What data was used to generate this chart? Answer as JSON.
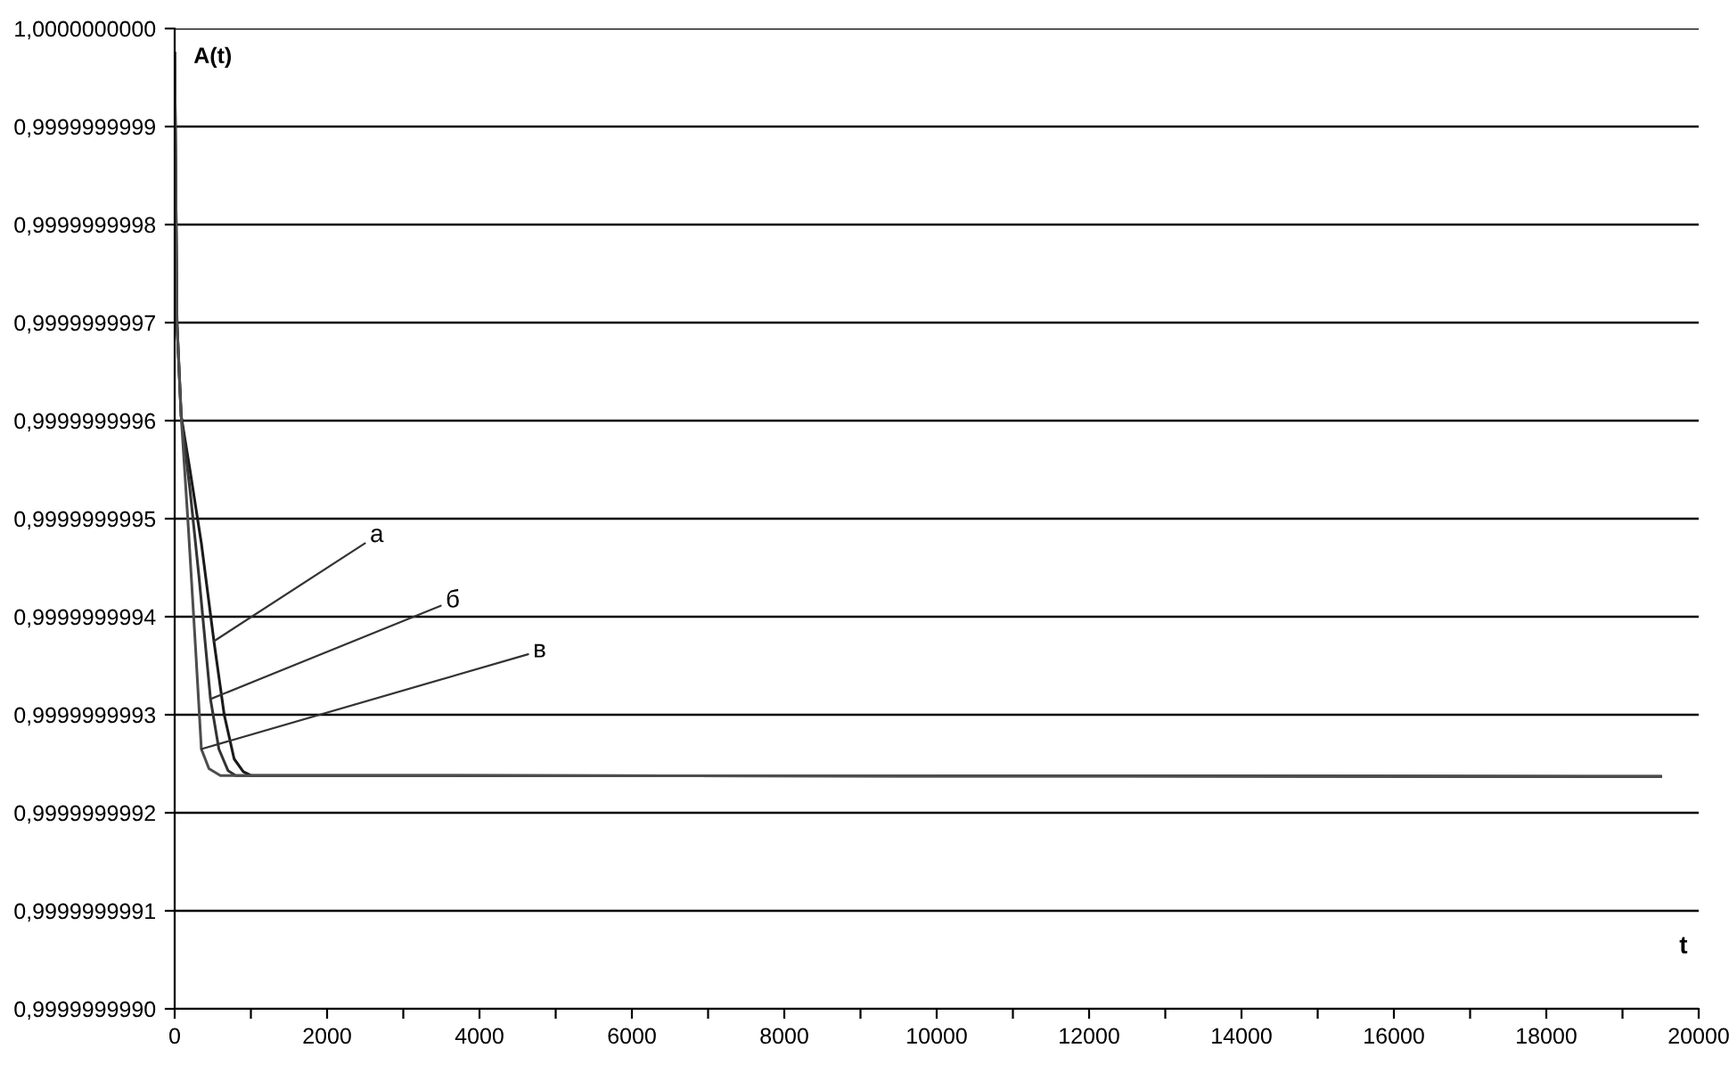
{
  "chart_data": {
    "type": "line",
    "xlabel": "t",
    "ylabel": "A(t)",
    "series": [
      {
        "color": "#1a1a1a",
        "x": [
          0,
          30,
          85,
          200,
          350,
          515,
          650,
          780,
          900,
          1000,
          3000,
          19500
        ],
        "values": [
          0.999999999975,
          0.9999999997,
          0.999999999605,
          0.99999999955,
          0.999999999475,
          0.999999999375,
          0.9999999993,
          0.999999999255,
          0.999999999242,
          0.999999999238,
          0.999999999238,
          0.999999999237
        ]
      },
      {
        "color": "#333333",
        "x": [
          0,
          30,
          85,
          200,
          320,
          470,
          580,
          700,
          800,
          3000,
          19500
        ],
        "values": [
          0.999999999975,
          0.9999999997,
          0.999999999605,
          0.99999999953,
          0.99999999944,
          0.999999999316,
          0.999999999265,
          0.999999999243,
          0.999999999238,
          0.999999999238,
          0.999999999237
        ]
      },
      {
        "color": "#4d4d4d",
        "x": [
          0,
          30,
          85,
          180,
          280,
          350,
          450,
          600,
          3000,
          19500
        ],
        "values": [
          0.999999999975,
          0.9999999997,
          0.999999999605,
          0.99999999949,
          0.99999999936,
          0.999999999265,
          0.999999999245,
          0.999999999238,
          0.999999999238,
          0.999999999237
        ]
      }
    ],
    "annotations": [
      {
        "text": "а",
        "x": 515,
        "y": 0.999999999375
      },
      {
        "text": "б",
        "x": 470,
        "y": 0.999999999316
      },
      {
        "text": "в",
        "x": 350,
        "y": 0.999999999265
      }
    ],
    "xlim": [
      0,
      20000
    ],
    "xticks": [
      0,
      {
        "value": 1000,
        "label": null
      },
      2000,
      {
        "value": 3000,
        "label": null
      },
      4000,
      {
        "value": 5000,
        "label": null
      },
      6000,
      {
        "value": 7000,
        "label": null
      },
      8000,
      {
        "value": 9000,
        "label": null
      },
      10000,
      {
        "value": 11000,
        "label": null
      },
      12000,
      {
        "value": 13000,
        "label": null
      },
      14000,
      {
        "value": 15000,
        "label": null
      },
      16000,
      {
        "value": 17000,
        "label": null
      },
      18000,
      {
        "value": 19000,
        "label": null
      },
      20000
    ],
    "ylim": [
      0.999999999,
      1.0
    ],
    "yticks": [
      {
        "value": 0.999999999,
        "label": "0,9999999990"
      },
      {
        "value": 0.9999999991,
        "label": "0,9999999991"
      },
      {
        "value": 0.9999999992,
        "label": "0,9999999992"
      },
      {
        "value": 0.9999999993,
        "label": "0,9999999993"
      },
      {
        "value": 0.9999999994,
        "label": "0,9999999994"
      },
      {
        "value": 0.9999999995,
        "label": "0,9999999995"
      },
      {
        "value": 0.9999999996,
        "label": "0,9999999996"
      },
      {
        "value": 0.9999999997,
        "label": "0,9999999997"
      },
      {
        "value": 0.9999999998,
        "label": "0,9999999998"
      },
      {
        "value": 0.9999999999,
        "label": "0,9999999999"
      },
      {
        "value": 1.0,
        "label": "1,0000000000"
      }
    ],
    "grid": "y",
    "marker": "none",
    "line_style": "solid",
    "legend": false
  }
}
